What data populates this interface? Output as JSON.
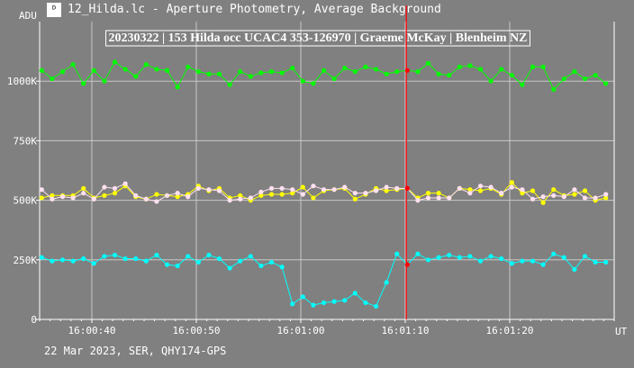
{
  "window": {
    "title": "12_Hilda.lc - Aperture Photometry, Average Background",
    "icon": "lightcurve-icon"
  },
  "footer": "22 Mar 2023, SER, QHY174-GPS",
  "chart_data": {
    "type": "line",
    "title": "20230322 | 153 Hilda occ UCAC4 353-126970 | Graeme McKay | Blenheim NZ",
    "ylabel": "ADU",
    "xlabel": "UT",
    "ylim": [
      0,
      1250000
    ],
    "xlim": [
      "16:00:35.0",
      "16:01:30.0"
    ],
    "grid": true,
    "y_ticks": [
      {
        "value": 0,
        "label": "0"
      },
      {
        "value": 250000,
        "label": "250K"
      },
      {
        "value": 500000,
        "label": "500K"
      },
      {
        "value": 750000,
        "label": "750K"
      },
      {
        "value": 1000000,
        "label": "1000K"
      }
    ],
    "x_ticks": [
      {
        "value": "16:00:40",
        "label": "16:00:40"
      },
      {
        "value": "16:00:50",
        "label": "16:00:50"
      },
      {
        "value": "16:01:00",
        "label": "16:01:00"
      },
      {
        "value": "16:01:10",
        "label": "16:01:10"
      },
      {
        "value": "16:01:20",
        "label": "16:01:20"
      }
    ],
    "cursor_time": "16:01:10.1",
    "cursor_color": "#ff0000",
    "x": [
      "16:00:35.2",
      "16:00:36.2",
      "16:00:37.2",
      "16:00:38.2",
      "16:00:39.2",
      "16:00:40.2",
      "16:00:41.2",
      "16:00:42.2",
      "16:00:43.2",
      "16:00:44.2",
      "16:00:45.2",
      "16:00:46.2",
      "16:00:47.2",
      "16:00:48.2",
      "16:00:49.2",
      "16:00:50.2",
      "16:00:51.2",
      "16:00:52.2",
      "16:00:53.2",
      "16:00:54.2",
      "16:00:55.2",
      "16:00:56.2",
      "16:00:57.2",
      "16:00:58.2",
      "16:00:59.2",
      "16:01:00.2",
      "16:01:01.2",
      "16:01:02.2",
      "16:01:03.2",
      "16:01:04.2",
      "16:01:05.2",
      "16:01:06.2",
      "16:01:07.2",
      "16:01:08.2",
      "16:01:09.2",
      "16:01:10.2",
      "16:01:11.2",
      "16:01:12.2",
      "16:01:13.2",
      "16:01:14.2",
      "16:01:15.2",
      "16:01:16.2",
      "16:01:17.2",
      "16:01:18.2",
      "16:01:19.2",
      "16:01:20.2",
      "16:01:21.2",
      "16:01:22.2",
      "16:01:23.2",
      "16:01:24.2",
      "16:01:25.2",
      "16:01:26.2",
      "16:01:27.2",
      "16:01:28.2",
      "16:01:29.2"
    ],
    "series": [
      {
        "color": "#00ff00",
        "values": [
          1045000,
          1010000,
          1040000,
          1070000,
          990000,
          1045000,
          1000000,
          1080000,
          1050000,
          1020000,
          1070000,
          1050000,
          1045000,
          975000,
          1060000,
          1040000,
          1030000,
          1030000,
          985000,
          1040000,
          1020000,
          1035000,
          1040000,
          1035000,
          1055000,
          1000000,
          990000,
          1045000,
          1010000,
          1055000,
          1040000,
          1060000,
          1050000,
          1030000,
          1040000,
          1045000,
          1040000,
          1075000,
          1030000,
          1025000,
          1060000,
          1065000,
          1050000,
          1000000,
          1050000,
          1025000,
          985000,
          1060000,
          1060000,
          965000,
          1010000,
          1040000,
          1010000,
          1025000,
          990000
        ]
      },
      {
        "color": "#ffff00",
        "values": [
          510000,
          520000,
          520000,
          520000,
          550000,
          510000,
          520000,
          530000,
          560000,
          515000,
          505000,
          525000,
          520000,
          515000,
          525000,
          560000,
          540000,
          550000,
          510000,
          520000,
          500000,
          520000,
          525000,
          525000,
          530000,
          555000,
          510000,
          540000,
          545000,
          550000,
          505000,
          525000,
          550000,
          540000,
          545000,
          550000,
          510000,
          530000,
          530000,
          510000,
          550000,
          545000,
          540000,
          550000,
          525000,
          575000,
          530000,
          540000,
          490000,
          545000,
          520000,
          525000,
          540000,
          500000,
          510000
        ]
      },
      {
        "color": "#ffe0f0",
        "values": [
          545000,
          505000,
          515000,
          510000,
          530000,
          505000,
          555000,
          550000,
          570000,
          520000,
          505000,
          495000,
          520000,
          530000,
          515000,
          550000,
          545000,
          540000,
          500000,
          505000,
          510000,
          535000,
          550000,
          550000,
          545000,
          525000,
          560000,
          545000,
          545000,
          555000,
          530000,
          530000,
          540000,
          555000,
          550000,
          550000,
          500000,
          510000,
          510000,
          510000,
          550000,
          530000,
          560000,
          555000,
          530000,
          555000,
          545000,
          505000,
          515000,
          520000,
          515000,
          545000,
          510000,
          510000,
          525000
        ]
      },
      {
        "color": "#00ffff",
        "values": [
          260000,
          245000,
          250000,
          245000,
          255000,
          235000,
          265000,
          270000,
          255000,
          255000,
          245000,
          270000,
          230000,
          225000,
          265000,
          240000,
          270000,
          255000,
          215000,
          245000,
          265000,
          225000,
          240000,
          220000,
          65000,
          95000,
          60000,
          70000,
          75000,
          80000,
          110000,
          70000,
          55000,
          155000,
          275000,
          230000,
          275000,
          250000,
          260000,
          270000,
          260000,
          265000,
          245000,
          265000,
          255000,
          235000,
          245000,
          245000,
          230000,
          275000,
          260000,
          210000,
          265000,
          240000,
          240000
        ]
      }
    ]
  }
}
